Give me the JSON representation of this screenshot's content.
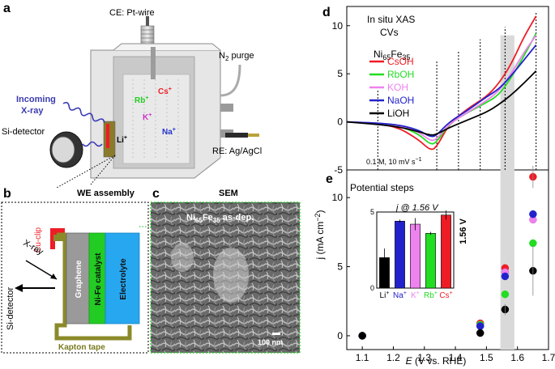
{
  "panels": {
    "a": {
      "label": "a",
      "ce": "CE: Pt-wire",
      "n2": "N",
      "n2_sub": "2",
      "n2_rest": " purge",
      "incoming1": "Incoming",
      "incoming2": "X-ray",
      "si_detector": "Si-detector",
      "re": "RE: Ag/AgCl",
      "ions": {
        "cs": "Cs",
        "rb": "Rb",
        "k": "K",
        "na": "Na",
        "li": "Li",
        "plus": "+"
      }
    },
    "b": {
      "label": "b",
      "title": "WE assembly",
      "cu_clip": "Cu-clip",
      "xray": "X-ray",
      "si_detector": "Si-detector",
      "graphene": "Graphene",
      "catalyst": "Ni-Fe catalyst",
      "electrolyte": "Electrolyte",
      "kapton": "Kapton tape"
    },
    "c": {
      "label": "c",
      "title": "SEM",
      "caption_a": "Ni",
      "caption_sub1": "65",
      "caption_b": "Fe",
      "caption_sub2": "35",
      "caption_c": " as-dep.",
      "scale": "100 nm"
    },
    "d": {
      "label": "d",
      "title1": "In situ XAS",
      "title2": "CVs",
      "formula_a": "Ni",
      "formula_sub1": "65",
      "formula_b": "Fe",
      "formula_sub2": "35",
      "conditions": "0.1 M, 10 mV s",
      "conditions_sup": "−1"
    },
    "e": {
      "label": "e",
      "title": "Potential steps",
      "shade_label": "1.56 V",
      "inset_title": "j @ 1.56 V"
    },
    "axes": {
      "ylabel": "j (mA cm",
      "ylabel_sup": "−2",
      "ylabel_end": ")",
      "xlabel_a": "E",
      "xlabel_b": " (V vs. RHE)"
    }
  },
  "colors": {
    "CsOH": "#ee1c25",
    "RbOH": "#22dd22",
    "KOH": "#ee82ee",
    "NaOH": "#2222cc",
    "LiOH": "#000000"
  },
  "chart_data": [
    {
      "type": "line",
      "title": "In situ XAS CVs",
      "xlabel": "E (V vs. RHE)",
      "ylabel": "j (mA cm−2)",
      "xlim": [
        1.05,
        1.7
      ],
      "ylim": [
        -5,
        12
      ],
      "yticks": [
        -5,
        0,
        5,
        10
      ],
      "dashed_lines_x": [
        1.15,
        1.34,
        1.41,
        1.48,
        1.56,
        1.66
      ],
      "series": [
        {
          "name": "CsOH",
          "x": [
            1.05,
            1.2,
            1.28,
            1.32,
            1.34,
            1.38,
            1.44,
            1.5,
            1.54,
            1.58,
            1.62,
            1.66
          ],
          "y": [
            0,
            -0.3,
            -1.8,
            -3.0,
            -2.6,
            -0.2,
            1.4,
            2.6,
            4.0,
            6.0,
            8.8,
            11.0
          ]
        },
        {
          "name": "RbOH",
          "x": [
            1.05,
            1.2,
            1.28,
            1.32,
            1.34,
            1.38,
            1.44,
            1.5,
            1.54,
            1.58,
            1.62,
            1.66
          ],
          "y": [
            0,
            -0.2,
            -1.2,
            -2.4,
            -2.1,
            -0.2,
            1.0,
            2.0,
            2.8,
            4.6,
            6.8,
            9.2
          ]
        },
        {
          "name": "KOH",
          "x": [
            1.05,
            1.2,
            1.28,
            1.32,
            1.34,
            1.38,
            1.44,
            1.5,
            1.54,
            1.58,
            1.62,
            1.66
          ],
          "y": [
            0,
            -0.2,
            -1.0,
            -2.0,
            -1.8,
            -0.2,
            1.0,
            2.2,
            3.2,
            5.0,
            7.2,
            9.0
          ]
        },
        {
          "name": "NaOH",
          "x": [
            1.05,
            1.2,
            1.28,
            1.32,
            1.34,
            1.38,
            1.44,
            1.5,
            1.54,
            1.58,
            1.62,
            1.66
          ],
          "y": [
            0,
            -0.2,
            -0.8,
            -1.6,
            -1.4,
            0,
            1.2,
            2.6,
            3.4,
            4.8,
            6.4,
            8.0
          ]
        },
        {
          "name": "LiOH",
          "x": [
            1.05,
            1.2,
            1.28,
            1.32,
            1.34,
            1.38,
            1.44,
            1.5,
            1.54,
            1.58,
            1.62,
            1.66
          ],
          "y": [
            0,
            -0.4,
            -1.0,
            -1.4,
            -1.3,
            -0.6,
            0.2,
            1.0,
            1.8,
            2.8,
            4.0,
            5.3
          ]
        }
      ],
      "legend": [
        "CsOH",
        "RbOH",
        "KOH",
        "NaOH",
        "LiOH"
      ]
    },
    {
      "type": "scatter",
      "title": "Potential steps",
      "xlabel": "E (V vs. RHE)",
      "xlim": [
        1.05,
        1.7
      ],
      "ylim": [
        -1,
        12
      ],
      "yticks": [
        0,
        5,
        10
      ],
      "xticks": [
        1.1,
        1.2,
        1.3,
        1.4,
        1.5,
        1.6,
        1.7
      ],
      "shade_range": [
        1.545,
        1.59
      ],
      "series": [
        {
          "name": "CsOH",
          "x": [
            1.1,
            1.48,
            1.56,
            1.65
          ],
          "y": [
            0,
            0.9,
            4.9,
            11.5
          ]
        },
        {
          "name": "RbOH",
          "x": [
            1.1,
            1.48,
            1.56,
            1.65
          ],
          "y": [
            0,
            0.8,
            3.0,
            6.7
          ]
        },
        {
          "name": "KOH",
          "x": [
            1.1,
            1.48,
            1.56,
            1.65
          ],
          "y": [
            0,
            0.7,
            4.6,
            8.4
          ]
        },
        {
          "name": "NaOH",
          "x": [
            1.1,
            1.48,
            1.56,
            1.65
          ],
          "y": [
            0,
            0.7,
            4.3,
            8.8
          ]
        },
        {
          "name": "LiOH",
          "x": [
            1.1,
            1.48,
            1.56,
            1.65
          ],
          "y": [
            0,
            0.2,
            1.9,
            4.7
          ]
        }
      ]
    },
    {
      "type": "bar",
      "title": "j @ 1.56 V",
      "categories": [
        "Li",
        "Na",
        "K",
        "Rb",
        "Cs"
      ],
      "values": [
        2.0,
        4.4,
        4.2,
        3.6,
        4.8
      ],
      "errors": [
        0.6,
        0.1,
        0.4,
        0.1,
        0.3
      ],
      "ylim": [
        0,
        5
      ],
      "yticks": [
        0,
        5
      ]
    }
  ]
}
